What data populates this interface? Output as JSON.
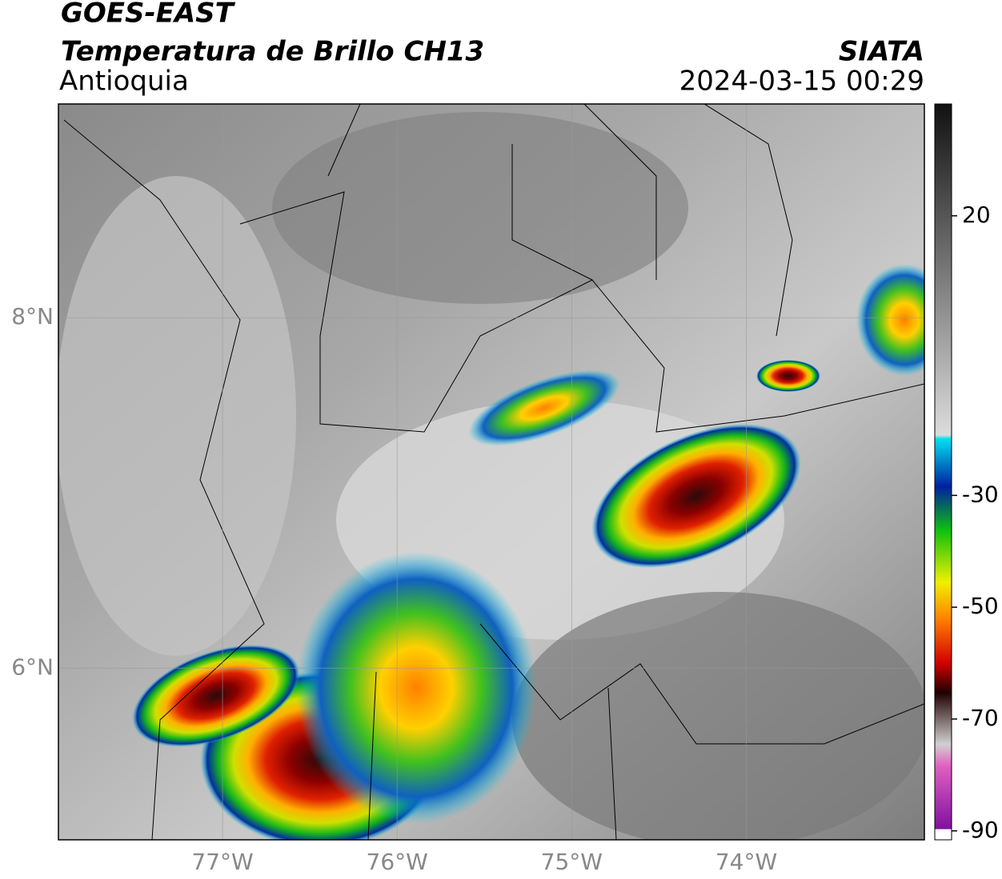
{
  "header": {
    "satellite": "GOES-EAST",
    "product": "Temperatura de Brillo CH13",
    "region": "Antioquia",
    "source": "SIATA",
    "timestamp": "2024-03-15 00:29"
  },
  "map": {
    "xlim": [
      -77.94,
      -72.98
    ],
    "ylim": [
      5.02,
      9.22
    ],
    "lat_ticks": [
      {
        "value": 8,
        "label": "8°N"
      },
      {
        "value": 6,
        "label": "6°N"
      }
    ],
    "lon_ticks": [
      {
        "value": -77,
        "label": "77°W"
      },
      {
        "value": -76,
        "label": "76°W"
      },
      {
        "value": -75,
        "label": "75°W"
      },
      {
        "value": -74,
        "label": "74°W"
      }
    ]
  },
  "colorbar": {
    "lim": [
      -91.6,
      40
    ],
    "ticks": [
      20,
      -30,
      -50,
      -70,
      -90
    ]
  }
}
